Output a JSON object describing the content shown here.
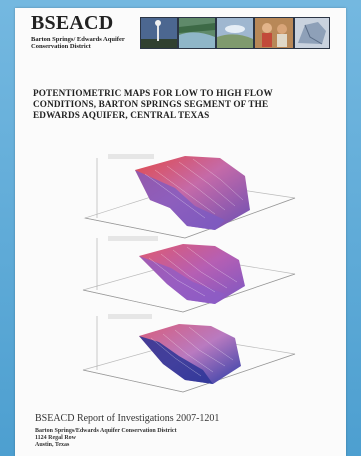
{
  "header": {
    "org_name": "BSEACD",
    "org_sub_line1": "Barton Springs/ Edwards Aquifer",
    "org_sub_line2": "Conservation District"
  },
  "photos": [
    {
      "name": "photo-sky-tower",
      "color": "#5b6f8d"
    },
    {
      "name": "photo-creek",
      "color": "#5f8a6a"
    },
    {
      "name": "photo-landscape",
      "color": "#8fa8c2"
    },
    {
      "name": "photo-people",
      "color": "#b2794a"
    },
    {
      "name": "photo-map",
      "color": "#a9b2c0"
    }
  ],
  "title": {
    "line1": "POTENTIOMETRIC MAPS FOR LOW TO HIGH FLOW",
    "line2": "CONDITIONS, BARTON SPRINGS SEGMENT OF THE",
    "line3": "EDWARDS AQUIFER, CENTRAL TEXAS"
  },
  "maps": [
    {
      "name": "surface-map-high-flow",
      "accent": "#e24a4a",
      "base": "#6a4fb4"
    },
    {
      "name": "surface-map-average-flow",
      "accent": "#e05a6e",
      "base": "#7a57c4"
    },
    {
      "name": "surface-map-low-flow",
      "accent": "#d95d7a",
      "base": "#2f3ea8"
    }
  ],
  "report": {
    "series_line": "BSEACD Report of Investigations 2007-1201"
  },
  "address": {
    "line1": "Barton Springs/Edwards Aquifer Conservation District",
    "line2": "1124 Regal Row",
    "line3": "Austin, Texas"
  }
}
